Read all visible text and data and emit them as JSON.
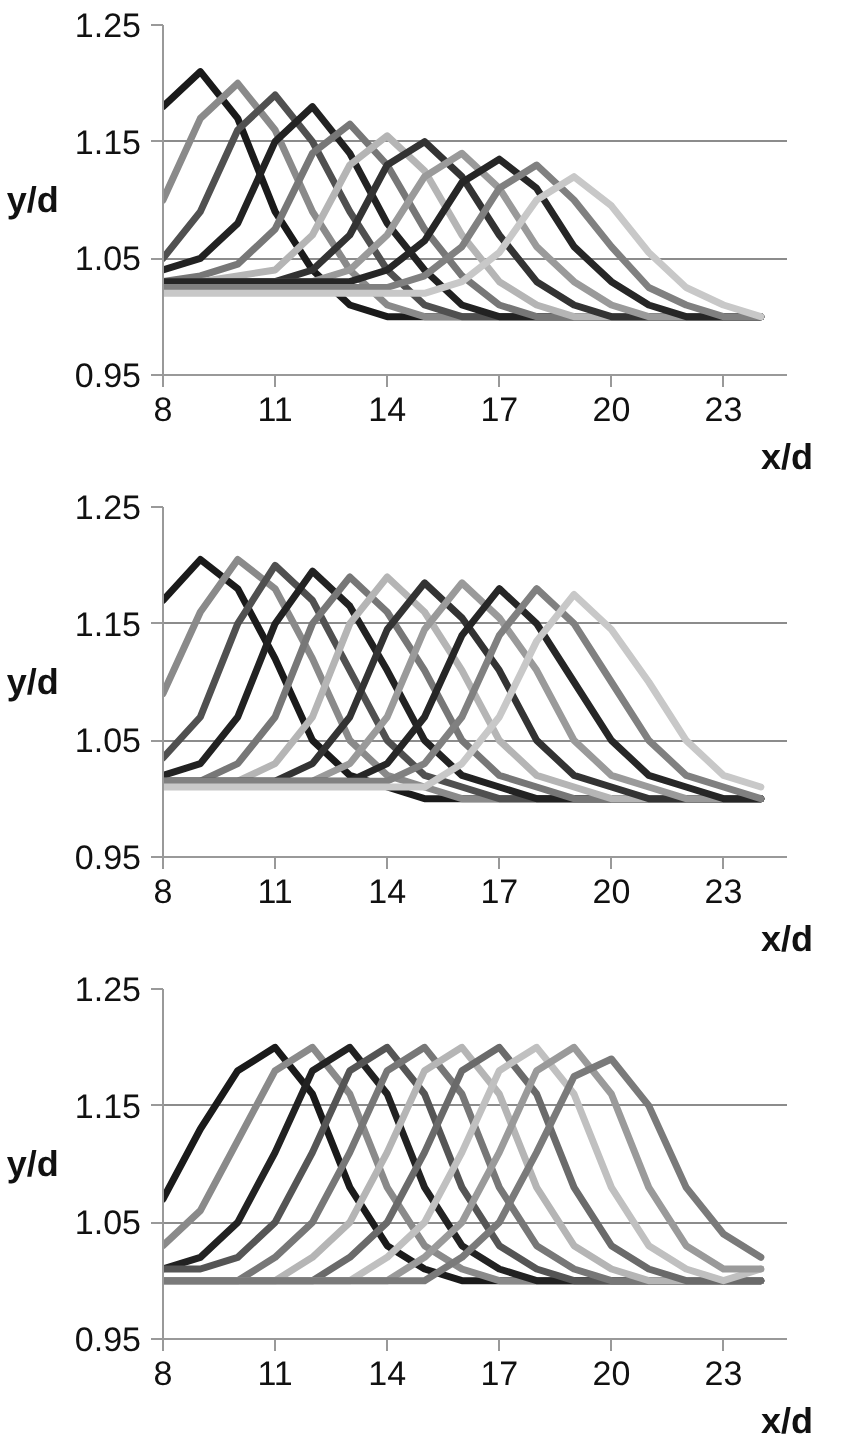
{
  "chart_data": [
    {
      "type": "line",
      "xlabel": "x/d",
      "ylabel": "y/d",
      "x": [
        8,
        9,
        10,
        11,
        12,
        13,
        14,
        15,
        16,
        17,
        18,
        19,
        20,
        21,
        22,
        23,
        24
      ],
      "xlim": [
        8,
        24.7
      ],
      "ylim": [
        0.95,
        1.25
      ],
      "xticks": [
        8,
        11,
        14,
        17,
        20,
        23
      ],
      "yticks": [
        0.95,
        1.05,
        1.15,
        1.25
      ],
      "grid": "y",
      "series": [
        {
          "color": "#1a1a1a",
          "values": [
            1.18,
            1.21,
            1.17,
            1.09,
            1.04,
            1.01,
            1.0,
            1.0,
            1.0,
            1.0,
            1.0,
            1.0,
            1.0,
            1.0,
            1.0,
            1.0,
            1.0
          ]
        },
        {
          "color": "#8a8a8a",
          "values": [
            1.1,
            1.17,
            1.2,
            1.16,
            1.09,
            1.04,
            1.01,
            1.0,
            1.0,
            1.0,
            1.0,
            1.0,
            1.0,
            1.0,
            1.0,
            1.0,
            1.0
          ]
        },
        {
          "color": "#505050",
          "values": [
            1.05,
            1.09,
            1.16,
            1.19,
            1.15,
            1.09,
            1.04,
            1.01,
            1.0,
            1.0,
            1.0,
            1.0,
            1.0,
            1.0,
            1.0,
            1.0,
            1.0
          ]
        },
        {
          "color": "#222222",
          "values": [
            1.04,
            1.05,
            1.08,
            1.15,
            1.18,
            1.14,
            1.08,
            1.04,
            1.01,
            1.0,
            1.0,
            1.0,
            1.0,
            1.0,
            1.0,
            1.0,
            1.0
          ]
        },
        {
          "color": "#777777",
          "values": [
            1.03,
            1.035,
            1.045,
            1.075,
            1.14,
            1.165,
            1.13,
            1.075,
            1.035,
            1.01,
            1.0,
            1.0,
            1.0,
            1.0,
            1.0,
            1.0,
            1.0
          ]
        },
        {
          "color": "#b5b5b5",
          "values": [
            1.03,
            1.03,
            1.035,
            1.04,
            1.07,
            1.13,
            1.155,
            1.125,
            1.07,
            1.03,
            1.01,
            1.0,
            1.0,
            1.0,
            1.0,
            1.0,
            1.0
          ]
        },
        {
          "color": "#333333",
          "values": [
            1.03,
            1.03,
            1.03,
            1.03,
            1.04,
            1.07,
            1.13,
            1.15,
            1.12,
            1.07,
            1.03,
            1.01,
            1.0,
            1.0,
            1.0,
            1.0,
            1.0
          ]
        },
        {
          "color": "#9a9a9a",
          "values": [
            1.03,
            1.03,
            1.03,
            1.03,
            1.03,
            1.04,
            1.07,
            1.12,
            1.14,
            1.11,
            1.06,
            1.03,
            1.01,
            1.0,
            1.0,
            1.0,
            1.0
          ]
        },
        {
          "color": "#262626",
          "values": [
            1.03,
            1.03,
            1.03,
            1.03,
            1.03,
            1.03,
            1.04,
            1.065,
            1.115,
            1.135,
            1.11,
            1.06,
            1.03,
            1.01,
            1.0,
            1.0,
            1.0
          ]
        },
        {
          "color": "#808080",
          "values": [
            1.025,
            1.025,
            1.025,
            1.025,
            1.025,
            1.025,
            1.025,
            1.035,
            1.06,
            1.11,
            1.13,
            1.1,
            1.06,
            1.025,
            1.01,
            1.0,
            1.0
          ]
        },
        {
          "color": "#c8c8c8",
          "values": [
            1.02,
            1.02,
            1.02,
            1.02,
            1.02,
            1.02,
            1.02,
            1.02,
            1.03,
            1.055,
            1.1,
            1.12,
            1.095,
            1.055,
            1.025,
            1.01,
            1.0
          ]
        }
      ]
    },
    {
      "type": "line",
      "xlabel": "x/d",
      "ylabel": "y/d",
      "x": [
        8,
        9,
        10,
        11,
        12,
        13,
        14,
        15,
        16,
        17,
        18,
        19,
        20,
        21,
        22,
        23,
        24
      ],
      "xlim": [
        8,
        24.7
      ],
      "ylim": [
        0.95,
        1.25
      ],
      "xticks": [
        8,
        11,
        14,
        17,
        20,
        23
      ],
      "yticks": [
        0.95,
        1.05,
        1.15,
        1.25
      ],
      "grid": "y",
      "series": [
        {
          "color": "#1a1a1a",
          "values": [
            1.17,
            1.205,
            1.18,
            1.12,
            1.05,
            1.02,
            1.01,
            1.0,
            1.0,
            1.0,
            1.0,
            1.0,
            1.0,
            1.0,
            1.0,
            1.0,
            1.0
          ]
        },
        {
          "color": "#8a8a8a",
          "values": [
            1.09,
            1.16,
            1.205,
            1.18,
            1.12,
            1.05,
            1.02,
            1.01,
            1.0,
            1.0,
            1.0,
            1.0,
            1.0,
            1.0,
            1.0,
            1.0,
            1.0
          ]
        },
        {
          "color": "#505050",
          "values": [
            1.035,
            1.07,
            1.15,
            1.2,
            1.17,
            1.11,
            1.05,
            1.02,
            1.01,
            1.0,
            1.0,
            1.0,
            1.0,
            1.0,
            1.0,
            1.0,
            1.0
          ]
        },
        {
          "color": "#222222",
          "values": [
            1.02,
            1.03,
            1.07,
            1.15,
            1.195,
            1.165,
            1.11,
            1.05,
            1.02,
            1.01,
            1.0,
            1.0,
            1.0,
            1.0,
            1.0,
            1.0,
            1.0
          ]
        },
        {
          "color": "#777777",
          "values": [
            1.015,
            1.015,
            1.03,
            1.07,
            1.15,
            1.19,
            1.16,
            1.11,
            1.05,
            1.02,
            1.01,
            1.0,
            1.0,
            1.0,
            1.0,
            1.0,
            1.0
          ]
        },
        {
          "color": "#b5b5b5",
          "values": [
            1.015,
            1.015,
            1.015,
            1.03,
            1.07,
            1.15,
            1.19,
            1.16,
            1.11,
            1.05,
            1.02,
            1.01,
            1.0,
            1.0,
            1.0,
            1.0,
            1.0
          ]
        },
        {
          "color": "#333333",
          "values": [
            1.015,
            1.015,
            1.015,
            1.015,
            1.03,
            1.07,
            1.145,
            1.185,
            1.155,
            1.11,
            1.05,
            1.02,
            1.01,
            1.0,
            1.0,
            1.0,
            1.0
          ]
        },
        {
          "color": "#9a9a9a",
          "values": [
            1.015,
            1.015,
            1.015,
            1.015,
            1.015,
            1.03,
            1.07,
            1.145,
            1.185,
            1.155,
            1.11,
            1.05,
            1.02,
            1.01,
            1.0,
            1.0,
            1.0
          ]
        },
        {
          "color": "#262626",
          "values": [
            1.015,
            1.015,
            1.015,
            1.015,
            1.015,
            1.015,
            1.03,
            1.07,
            1.14,
            1.18,
            1.15,
            1.1,
            1.05,
            1.02,
            1.01,
            1.0,
            1.0
          ]
        },
        {
          "color": "#808080",
          "values": [
            1.015,
            1.015,
            1.015,
            1.015,
            1.015,
            1.015,
            1.015,
            1.03,
            1.07,
            1.14,
            1.18,
            1.15,
            1.1,
            1.05,
            1.02,
            1.01,
            1.0
          ]
        },
        {
          "color": "#c8c8c8",
          "values": [
            1.01,
            1.01,
            1.01,
            1.01,
            1.01,
            1.01,
            1.01,
            1.01,
            1.03,
            1.07,
            1.135,
            1.175,
            1.145,
            1.1,
            1.05,
            1.02,
            1.01
          ]
        }
      ]
    },
    {
      "type": "line",
      "xlabel": "x/d",
      "ylabel": "y/d",
      "x": [
        8,
        9,
        10,
        11,
        12,
        13,
        14,
        15,
        16,
        17,
        18,
        19,
        20,
        21,
        22,
        23,
        24
      ],
      "xlim": [
        8,
        24.7
      ],
      "ylim": [
        0.95,
        1.25
      ],
      "xticks": [
        8,
        11,
        14,
        17,
        20,
        23
      ],
      "yticks": [
        0.95,
        1.05,
        1.15,
        1.25
      ],
      "grid": "y",
      "series": [
        {
          "color": "#1a1a1a",
          "values": [
            1.07,
            1.13,
            1.18,
            1.2,
            1.16,
            1.08,
            1.03,
            1.01,
            1.0,
            1.0,
            1.0,
            1.0,
            1.0,
            1.0,
            1.0,
            1.0,
            1.0
          ]
        },
        {
          "color": "#8a8a8a",
          "values": [
            1.03,
            1.06,
            1.12,
            1.18,
            1.2,
            1.16,
            1.08,
            1.03,
            1.01,
            1.0,
            1.0,
            1.0,
            1.0,
            1.0,
            1.0,
            1.0,
            1.0
          ]
        },
        {
          "color": "#222222",
          "values": [
            1.01,
            1.02,
            1.05,
            1.11,
            1.18,
            1.2,
            1.16,
            1.08,
            1.03,
            1.01,
            1.0,
            1.0,
            1.0,
            1.0,
            1.0,
            1.0,
            1.0
          ]
        },
        {
          "color": "#555555",
          "values": [
            1.01,
            1.01,
            1.02,
            1.05,
            1.11,
            1.18,
            1.2,
            1.16,
            1.08,
            1.03,
            1.01,
            1.0,
            1.0,
            1.0,
            1.0,
            1.0,
            1.0
          ]
        },
        {
          "color": "#777777",
          "values": [
            1.0,
            1.0,
            1.0,
            1.02,
            1.05,
            1.11,
            1.18,
            1.2,
            1.16,
            1.08,
            1.03,
            1.01,
            1.0,
            1.0,
            1.0,
            1.0,
            1.0
          ]
        },
        {
          "color": "#b5b5b5",
          "values": [
            1.0,
            1.0,
            1.0,
            1.0,
            1.02,
            1.05,
            1.11,
            1.18,
            1.2,
            1.16,
            1.08,
            1.03,
            1.01,
            1.0,
            1.0,
            1.0,
            1.0
          ]
        },
        {
          "color": "#6a6a6a",
          "values": [
            1.0,
            1.0,
            1.0,
            1.0,
            1.0,
            1.02,
            1.05,
            1.11,
            1.18,
            1.2,
            1.16,
            1.08,
            1.03,
            1.01,
            1.0,
            1.0,
            1.0
          ]
        },
        {
          "color": "#c0c0c0",
          "values": [
            1.0,
            1.0,
            1.0,
            1.0,
            1.0,
            1.0,
            1.02,
            1.05,
            1.11,
            1.18,
            1.2,
            1.16,
            1.08,
            1.03,
            1.01,
            1.0,
            1.01
          ]
        },
        {
          "color": "#9a9a9a",
          "values": [
            1.0,
            1.0,
            1.0,
            1.0,
            1.0,
            1.0,
            1.0,
            1.02,
            1.05,
            1.11,
            1.18,
            1.2,
            1.16,
            1.08,
            1.03,
            1.01,
            1.01
          ]
        },
        {
          "color": "#7a7a7a",
          "values": [
            1.0,
            1.0,
            1.0,
            1.0,
            1.0,
            1.0,
            1.0,
            1.0,
            1.02,
            1.05,
            1.11,
            1.175,
            1.19,
            1.15,
            1.08,
            1.04,
            1.02
          ]
        }
      ]
    }
  ]
}
